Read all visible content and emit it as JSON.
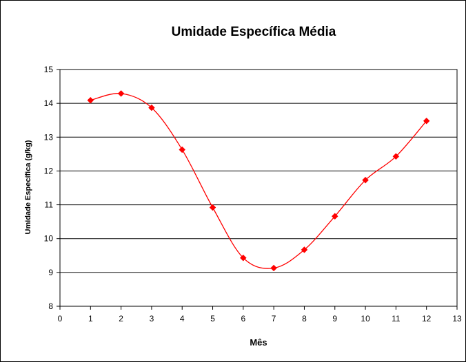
{
  "chart_data": {
    "type": "line",
    "title": "Umidade Específica Média",
    "xlabel": "Mês",
    "ylabel": "Umidade Específica (g/kg)",
    "xlim": [
      0,
      13
    ],
    "ylim": [
      8,
      15
    ],
    "x_ticks": [
      "0",
      "1",
      "2",
      "3",
      "4",
      "5",
      "6",
      "7",
      "8",
      "9",
      "10",
      "11",
      "12",
      "13"
    ],
    "y_ticks": [
      "8",
      "9",
      "10",
      "11",
      "12",
      "13",
      "14",
      "15"
    ],
    "grid": "horizontal",
    "smooth": true,
    "series": [
      {
        "color": "#ff0000",
        "marker": "diamond",
        "x": [
          1,
          2,
          3,
          4,
          5,
          6,
          7,
          8,
          9,
          10,
          11,
          12
        ],
        "values": [
          14.09,
          14.29,
          13.87,
          12.63,
          10.92,
          9.43,
          9.13,
          9.67,
          10.66,
          11.73,
          12.43,
          13.48
        ]
      }
    ]
  }
}
